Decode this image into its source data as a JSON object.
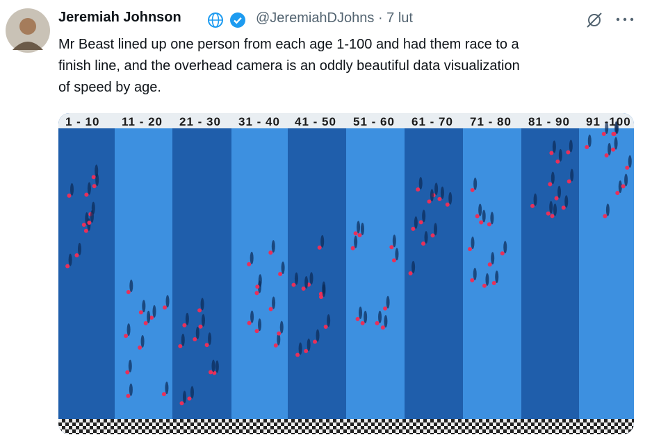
{
  "header": {
    "name": "Jeremiah Johnson",
    "handle": "@JeremiahDJohns",
    "time": "· 7 lut"
  },
  "tweet": {
    "lines": [
      "Mr Beast lined up one person from each age 1-100 and had them race to a",
      "finish line, and the overhead camera is an oddly beautiful data visualization",
      "of speed by age."
    ]
  },
  "image": {
    "column_labels": [
      "1 - 10",
      "11 - 20",
      "21 - 30",
      "31 - 40",
      "41 - 50",
      "51 - 60",
      "61 - 70",
      "71 - 80",
      "81 - 90",
      "91 -100"
    ]
  }
}
